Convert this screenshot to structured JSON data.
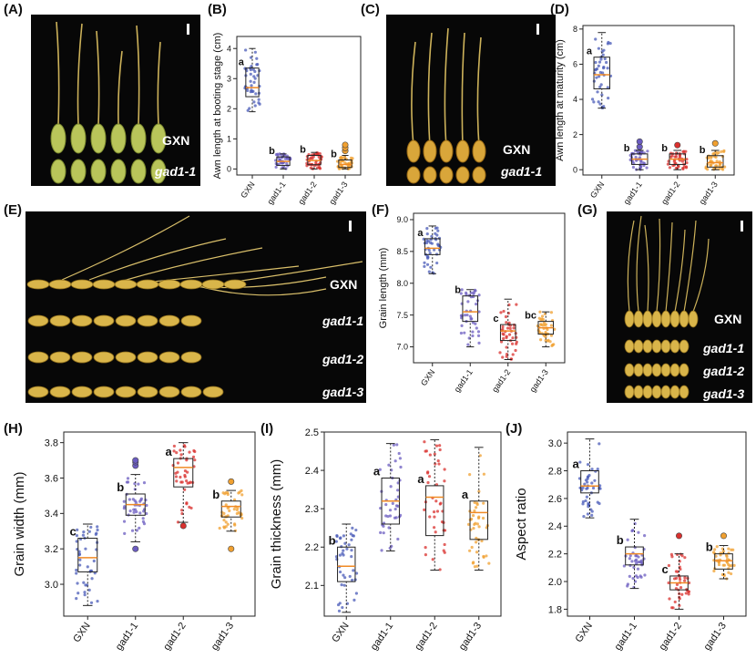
{
  "panels": {
    "A": "(A)",
    "B": "(B)",
    "C": "(C)",
    "D": "(D)",
    "E": "(E)",
    "F": "(F)",
    "G": "(G)",
    "H": "(H)",
    "I": "(I)",
    "J": "(J)"
  },
  "photo_labels": {
    "A": [
      "GXN",
      "gad1-1"
    ],
    "C": [
      "GXN",
      "gad1-1"
    ],
    "E": [
      "GXN",
      "gad1-1",
      "gad1-2",
      "gad1-3"
    ],
    "G": [
      "GXN",
      "gad1-1",
      "gad1-2",
      "gad1-3"
    ]
  },
  "colors": {
    "GXN": "#4a5bb8",
    "gad1-1": "#6b5cc0",
    "gad1-2": "#d9302e",
    "gad1-3": "#f0a030",
    "median": "#f08a24",
    "photo_bg": "#070707",
    "grain": "#d9b54a",
    "awn": "#cdb25a"
  },
  "chart_data": [
    {
      "id": "B",
      "type": "box",
      "ylabel": "Awn length at booting stage (cm)",
      "categories": [
        "GXN",
        "gad1-1",
        "gad1-2",
        "gad1-3"
      ],
      "ylim": [
        -0.2,
        4.4
      ],
      "yticks": [
        0,
        1,
        2,
        3,
        4
      ],
      "boxes": [
        {
          "min": 1.9,
          "q1": 2.4,
          "median": 2.7,
          "q3": 3.35,
          "max": 4.0,
          "letter": "a",
          "outliers": []
        },
        {
          "min": 0.0,
          "q1": 0.12,
          "median": 0.25,
          "q3": 0.4,
          "max": 0.5,
          "letter": "b",
          "outliers": []
        },
        {
          "min": 0.0,
          "q1": 0.14,
          "median": 0.28,
          "q3": 0.45,
          "max": 0.55,
          "letter": "b",
          "outliers": []
        },
        {
          "min": 0.0,
          "q1": 0.05,
          "median": 0.15,
          "q3": 0.3,
          "max": 0.45,
          "letter": "b",
          "outliers": [
            0.6,
            0.7,
            0.8
          ]
        }
      ]
    },
    {
      "id": "D",
      "type": "box",
      "ylabel": "Awn length at maturity (cm)",
      "categories": [
        "GXN",
        "gad1-1",
        "gad1-2",
        "gad1-3"
      ],
      "ylim": [
        -0.3,
        8.2
      ],
      "yticks": [
        0,
        2,
        4,
        6,
        8
      ],
      "boxes": [
        {
          "min": 3.5,
          "q1": 4.6,
          "median": 5.4,
          "q3": 6.4,
          "max": 7.8,
          "letter": "a",
          "outliers": []
        },
        {
          "min": 0.0,
          "q1": 0.3,
          "median": 0.6,
          "q3": 0.9,
          "max": 1.1,
          "letter": "b",
          "outliers": [
            1.3,
            1.6
          ]
        },
        {
          "min": 0.0,
          "q1": 0.3,
          "median": 0.6,
          "q3": 0.9,
          "max": 1.1,
          "letter": "b",
          "outliers": [
            1.4
          ]
        },
        {
          "min": 0.0,
          "q1": 0.15,
          "median": 0.4,
          "q3": 0.8,
          "max": 1.1,
          "letter": "b",
          "outliers": [
            1.5
          ]
        }
      ]
    },
    {
      "id": "F",
      "type": "box",
      "ylabel": "Grain length (mm)",
      "categories": [
        "GXN",
        "gad1-1",
        "gad1-2",
        "gad1-3"
      ],
      "ylim": [
        6.75,
        9.1
      ],
      "yticks": [
        7.0,
        7.5,
        8.0,
        8.5,
        9.0
      ],
      "boxes": [
        {
          "min": 8.15,
          "q1": 8.45,
          "median": 8.55,
          "q3": 8.7,
          "max": 8.9,
          "letter": "a",
          "outliers": []
        },
        {
          "min": 7.0,
          "q1": 7.4,
          "median": 7.55,
          "q3": 7.8,
          "max": 7.9,
          "letter": "b",
          "outliers": []
        },
        {
          "min": 6.8,
          "q1": 7.1,
          "median": 7.25,
          "q3": 7.35,
          "max": 7.75,
          "letter": "c",
          "outliers": []
        },
        {
          "min": 7.0,
          "q1": 7.2,
          "median": 7.3,
          "q3": 7.4,
          "max": 7.55,
          "letter": "bc",
          "outliers": []
        }
      ]
    },
    {
      "id": "H",
      "type": "box",
      "ylabel": "Grain width (mm)",
      "categories": [
        "GXN",
        "gad1-1",
        "gad1-2",
        "gad1-3"
      ],
      "ylim": [
        2.82,
        3.86
      ],
      "yticks": [
        3.0,
        3.2,
        3.4,
        3.6,
        3.8
      ],
      "boxes": [
        {
          "min": 2.88,
          "q1": 3.07,
          "median": 3.15,
          "q3": 3.26,
          "max": 3.34,
          "letter": "c",
          "outliers": []
        },
        {
          "min": 3.24,
          "q1": 3.39,
          "median": 3.45,
          "q3": 3.51,
          "max": 3.62,
          "letter": "b",
          "outliers": [
            3.2,
            3.67,
            3.69,
            3.7
          ]
        },
        {
          "min": 3.35,
          "q1": 3.55,
          "median": 3.66,
          "q3": 3.71,
          "max": 3.8,
          "letter": "a",
          "outliers": [
            3.33
          ]
        },
        {
          "min": 3.3,
          "q1": 3.38,
          "median": 3.44,
          "q3": 3.47,
          "max": 3.53,
          "letter": "b",
          "outliers": [
            3.2,
            3.58
          ]
        }
      ]
    },
    {
      "id": "I",
      "type": "box",
      "ylabel": "Grain thickness (mm)",
      "categories": [
        "GXN",
        "gad1-1",
        "gad1-2",
        "gad1-3"
      ],
      "ylim": [
        2.02,
        2.5
      ],
      "yticks": [
        2.1,
        2.2,
        2.3,
        2.4,
        2.5
      ],
      "boxes": [
        {
          "min": 2.03,
          "q1": 2.11,
          "median": 2.15,
          "q3": 2.2,
          "max": 2.26,
          "letter": "b",
          "outliers": []
        },
        {
          "min": 2.19,
          "q1": 2.26,
          "median": 2.32,
          "q3": 2.38,
          "max": 2.47,
          "letter": "a",
          "outliers": []
        },
        {
          "min": 2.14,
          "q1": 2.23,
          "median": 2.33,
          "q3": 2.36,
          "max": 2.48,
          "letter": "a",
          "outliers": []
        },
        {
          "min": 2.14,
          "q1": 2.22,
          "median": 2.29,
          "q3": 2.32,
          "max": 2.46,
          "letter": "a",
          "outliers": []
        }
      ]
    },
    {
      "id": "J",
      "type": "box",
      "ylabel": "Aspect ratio",
      "categories": [
        "GXN",
        "gad1-1",
        "gad1-2",
        "gad1-3"
      ],
      "ylim": [
        1.75,
        3.08
      ],
      "yticks": [
        1.8,
        2.0,
        2.2,
        2.4,
        2.6,
        2.8,
        3.0
      ],
      "boxes": [
        {
          "min": 2.46,
          "q1": 2.64,
          "median": 2.69,
          "q3": 2.8,
          "max": 3.03,
          "letter": "a",
          "outliers": []
        },
        {
          "min": 1.95,
          "q1": 2.12,
          "median": 2.2,
          "q3": 2.25,
          "max": 2.45,
          "letter": "b",
          "outliers": []
        },
        {
          "min": 1.8,
          "q1": 1.94,
          "median": 1.99,
          "q3": 2.04,
          "max": 2.2,
          "letter": "c",
          "outliers": [
            2.33
          ]
        },
        {
          "min": 2.02,
          "q1": 2.09,
          "median": 2.15,
          "q3": 2.2,
          "max": 2.26,
          "letter": "b",
          "outliers": [
            2.33
          ]
        }
      ]
    }
  ]
}
